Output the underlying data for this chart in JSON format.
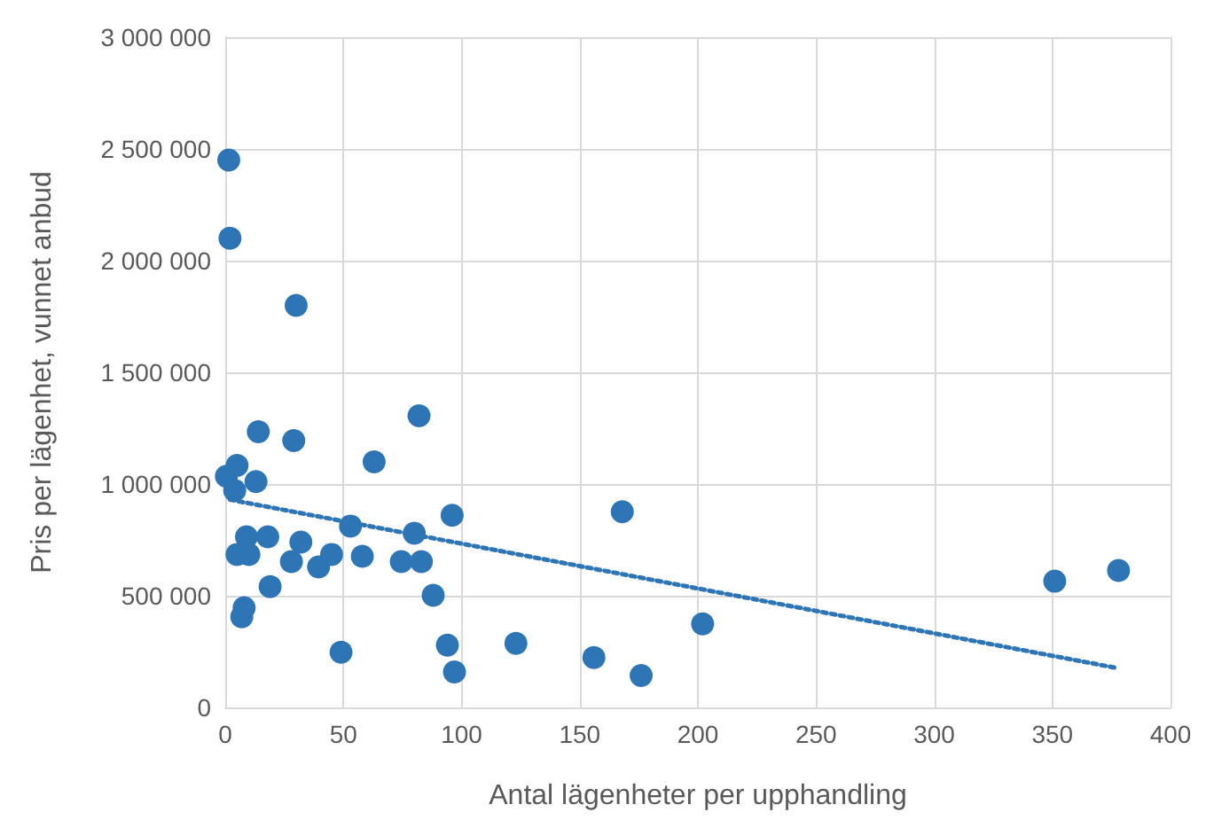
{
  "chart_data": {
    "type": "scatter",
    "xlabel": "Antal lägenheter per upphandling",
    "ylabel": "Pris per lägenhet, vunnet anbud",
    "xlim": [
      0,
      400
    ],
    "xticks": [
      0,
      50,
      100,
      150,
      200,
      250,
      300,
      350,
      400
    ],
    "ylim": [
      0,
      3000000
    ],
    "yticks": [
      {
        "value": 0,
        "label": "0"
      },
      {
        "value": 500000,
        "label": "500 000"
      },
      {
        "value": 1000000,
        "label": "1 000 000"
      },
      {
        "value": 1500000,
        "label": "1 500 000"
      },
      {
        "value": 2000000,
        "label": "2 000 000"
      },
      {
        "value": 2500000,
        "label": "2 500 000"
      },
      {
        "value": 3000000,
        "label": "3 000 000"
      }
    ],
    "grid": true,
    "marker": "circle",
    "series": [
      {
        "color": "#2e75b6",
        "x": [
          1.5,
          2,
          30,
          14,
          29,
          82,
          63,
          0.5,
          5,
          13,
          4,
          53,
          80,
          96,
          168,
          9,
          18,
          5,
          10,
          32,
          28,
          39.5,
          45,
          58,
          74.5,
          83,
          19,
          88,
          8,
          7,
          49,
          94,
          97,
          123,
          156,
          176,
          202,
          351,
          378
        ],
        "values": [
          2450000,
          2100000,
          1800000,
          1234000,
          1194000,
          1306000,
          1099000,
          1035000,
          1083000,
          1011000,
          971000,
          812000,
          780000,
          860000,
          876000,
          764000,
          764000,
          685000,
          685000,
          740000,
          653000,
          629000,
          685000,
          677000,
          653000,
          653000,
          541000,
          502000,
          446000,
          406000,
          247000,
          279000,
          159000,
          287000,
          223000,
          143000,
          374000,
          565000,
          613000
        ]
      },
      {
        "type": "line",
        "color": "#2e75b6",
        "line_style": "dotted",
        "marker": "none",
        "x": [
          2,
          378
        ],
        "values": [
          930000,
          175000
        ]
      }
    ]
  }
}
